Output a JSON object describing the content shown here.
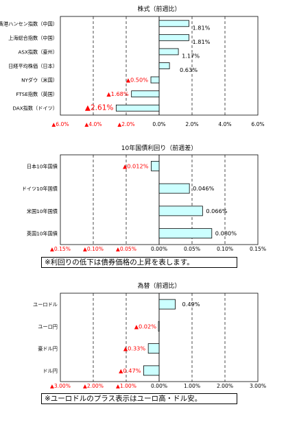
{
  "colors": {
    "bar_fill": "#ccffff",
    "bar_stroke": "#000000",
    "negative_text": "#ff0000",
    "positive_text": "#000000"
  },
  "chart_data": [
    {
      "type": "bar",
      "orientation": "horizontal",
      "title": "株式（前週比）",
      "categories": [
        "香港ハンセン指数（中国）",
        "上海総合指数（中国）",
        "ASX指数（豪州）",
        "日経平均株価（日本）",
        "NYダウ（米国）",
        "FTSE指数（英国）",
        "DAX指数（ドイツ）"
      ],
      "values": [
        1.81,
        1.81,
        1.17,
        0.63,
        -0.5,
        -1.68,
        -2.61
      ],
      "data_labels": [
        "1.81%",
        "1.81%",
        "1.17%",
        "0.63%",
        "▲0.50%",
        "▲1.68%",
        "▲2.61%"
      ],
      "xlim": [
        -6,
        6
      ],
      "ticks": [
        -6,
        -4,
        -2,
        0,
        2,
        4,
        6
      ],
      "tick_labels": [
        "▲6.0%",
        "▲4.0%",
        "▲2.0%",
        "0.0%",
        "2.0%",
        "4.0%",
        "6.0%"
      ],
      "grid": true,
      "note": ""
    },
    {
      "type": "bar",
      "orientation": "horizontal",
      "title": "10年国債利回り（前週差）",
      "categories": [
        "日本10年国債",
        "ドイツ10年国債",
        "米国10年国債",
        "英国10年国債"
      ],
      "values": [
        -0.012,
        0.046,
        0.066,
        0.08
      ],
      "data_labels": [
        "▲0.012%",
        "0.046%",
        "0.066%",
        "0.080%"
      ],
      "xlim": [
        -0.15,
        0.15
      ],
      "ticks": [
        -0.15,
        -0.1,
        -0.05,
        0,
        0.05,
        0.1,
        0.15
      ],
      "tick_labels": [
        "▲0.15%",
        "▲0.10%",
        "▲0.05%",
        "0.00%",
        "0.05%",
        "0.10%",
        "0.15%"
      ],
      "grid": true,
      "note": "※利回りの低下は債券価格の上昇を表します。"
    },
    {
      "type": "bar",
      "orientation": "horizontal",
      "title": "為替（前週比）",
      "categories": [
        "ユーロドル",
        "ユーロ円",
        "豪ドル円",
        "ドル円"
      ],
      "values": [
        0.49,
        -0.02,
        -0.33,
        -0.47
      ],
      "data_labels": [
        "0.49%",
        "▲0.02%",
        "▲0.33%",
        "▲0.47%"
      ],
      "xlim": [
        -3,
        3
      ],
      "ticks": [
        -3,
        -2,
        -1,
        0,
        1,
        2,
        3
      ],
      "tick_labels": [
        "▲3.00%",
        "▲2.00%",
        "▲1.00%",
        "0.00%",
        "1.00%",
        "2.00%",
        "3.00%"
      ],
      "grid": true,
      "note": "※ユーロドルのプラス表示はユーロ高・ドル安。"
    }
  ]
}
